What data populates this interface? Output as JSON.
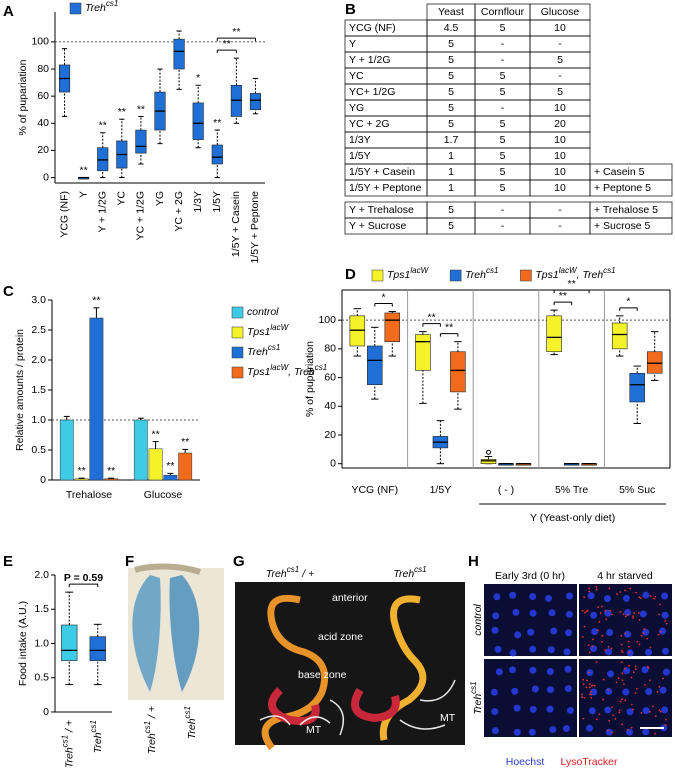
{
  "panels": [
    "A",
    "B",
    "C",
    "D",
    "E",
    "F",
    "G",
    "H"
  ],
  "chart_data": [
    {
      "type": "box",
      "ylabel": "% of pupariation",
      "categories": [
        "YCG (NF)",
        "Y",
        "Y + 1/2G",
        "YC",
        "YC + 1/2G",
        "YG",
        "YC + 2G",
        "1/3Y",
        "1/5Y",
        "1/5Y + Casein",
        "1/5Y + Peptone"
      ],
      "ylim": [
        -4,
        122
      ],
      "yticks": [
        0,
        20,
        40,
        60,
        80,
        100
      ],
      "refline": 100,
      "series": [
        {
          "name": [
            "Treh",
            "cs1"
          ],
          "color": "#1f6fd6",
          "boxes": [
            {
              "min": 45,
              "q1": 63,
              "median": 73,
              "q3": 83,
              "max": 95
            },
            {
              "min": 0,
              "q1": 0,
              "median": 0,
              "q3": 0,
              "max": 0
            },
            {
              "min": 0,
              "q1": 5,
              "median": 13,
              "q3": 22,
              "max": 33
            },
            {
              "min": 0,
              "q1": 7,
              "median": 17,
              "q3": 27,
              "max": 43
            },
            {
              "min": 10,
              "q1": 18,
              "median": 23,
              "q3": 35,
              "max": 45
            },
            {
              "min": 25,
              "q1": 35,
              "median": 49,
              "q3": 63,
              "max": 80
            },
            {
              "min": 65,
              "q1": 80,
              "median": 93,
              "q3": 102,
              "max": 108
            },
            {
              "min": 22,
              "q1": 28,
              "median": 40,
              "q3": 55,
              "max": 68
            },
            {
              "min": 0,
              "q1": 10,
              "median": 15,
              "q3": 24,
              "max": 35
            },
            {
              "min": 40,
              "q1": 45,
              "median": 57,
              "q3": 68,
              "max": 88
            },
            {
              "min": 47,
              "q1": 50,
              "median": 57,
              "q3": 62,
              "max": 73
            }
          ]
        }
      ],
      "sig": [
        null,
        "**",
        "**",
        "**",
        "**",
        null,
        null,
        "*",
        "**",
        null,
        null
      ],
      "brackets": [
        {
          "text": "**",
          "from": 8,
          "to": 9
        },
        {
          "text": "**",
          "from": 8,
          "to": 10
        }
      ]
    },
    {
      "type": "bar",
      "ylabel": "Relative amounts / protein",
      "categories": [
        "Trehalose",
        "Glucose"
      ],
      "ylim": [
        0,
        3
      ],
      "yticks": [
        0,
        0.5,
        {
          "value": 1,
          "label": "1.0"
        },
        {
          "value": 1.5,
          "label": "1.5"
        },
        {
          "value": 2,
          "label": "2.0"
        },
        {
          "value": 2.5,
          "label": "2.5"
        },
        {
          "value": 3,
          "label": "3.0"
        }
      ],
      "refline": 1,
      "series": [
        {
          "name": "control",
          "color": "#3ecbe6",
          "values": [
            1.0,
            1.0
          ],
          "errors": [
            0.06,
            0.03
          ],
          "sig": [
            null,
            null
          ]
        },
        {
          "name": [
            "Tps1",
            "lacW"
          ],
          "color": "#f5f22a",
          "values": [
            0.02,
            0.52
          ],
          "errors": [
            0.01,
            0.12
          ],
          "sig": [
            "**",
            "**"
          ]
        },
        {
          "name": [
            "Treh",
            "cs1"
          ],
          "color": "#1f6fd6",
          "values": [
            2.7,
            0.08
          ],
          "errors": [
            0.17,
            0.03
          ],
          "sig": [
            "**",
            "**"
          ]
        },
        {
          "name": [
            "Tps1",
            "lacW",
            ", Treh",
            "cs1"
          ],
          "color": "#f26b1d",
          "values": [
            0.02,
            0.45
          ],
          "errors": [
            0.01,
            0.06
          ],
          "sig": [
            "**",
            "**"
          ]
        }
      ]
    },
    {
      "type": "box",
      "ylabel": "% of pupariation",
      "categories": [
        "YCG (NF)",
        "1/5Y",
        "( - )",
        "5% Tre",
        "5% Suc"
      ],
      "ylim": [
        -3,
        121
      ],
      "yticks": [
        0,
        20,
        40,
        60,
        80,
        100
      ],
      "refline": 100,
      "group_note": {
        "text": "Y (Yeast-only diet)",
        "from": 2,
        "to": 4
      },
      "series": [
        {
          "name": [
            "Tps1",
            "lacW"
          ],
          "color": "#f5f22a",
          "boxes": [
            {
              "min": 75,
              "q1": 82,
              "median": 93,
              "q3": 103,
              "max": 108
            },
            {
              "min": 42,
              "q1": 65,
              "median": 85,
              "q3": 90,
              "max": 92
            },
            {
              "min": 0,
              "q1": 0,
              "median": 2,
              "q3": 3,
              "max": 5,
              "outliers": [
                8
              ]
            },
            {
              "min": 76,
              "q1": 78,
              "median": 88,
              "q3": 103,
              "max": 107
            },
            {
              "min": 75,
              "q1": 80,
              "median": 90,
              "q3": 98,
              "max": 103
            }
          ]
        },
        {
          "name": [
            "Treh",
            "cs1"
          ],
          "color": "#1f6fd6",
          "boxes": [
            {
              "min": 45,
              "q1": 55,
              "median": 72,
              "q3": 82,
              "max": 95
            },
            {
              "min": 0,
              "q1": 11,
              "median": 15,
              "q3": 19,
              "max": 30
            },
            {
              "min": 0,
              "q1": 0,
              "median": 0,
              "q3": 0,
              "max": 0
            },
            {
              "min": 0,
              "q1": 0,
              "median": 0,
              "q3": 0,
              "max": 0
            },
            {
              "min": 28,
              "q1": 43,
              "median": 55,
              "q3": 63,
              "max": 68
            }
          ]
        },
        {
          "name": [
            "Tps1",
            "lacW",
            ", Treh",
            "cs1"
          ],
          "color": "#f26b1d",
          "boxes": [
            {
              "min": 75,
              "q1": 85,
              "median": 100,
              "q3": 105,
              "max": 106
            },
            {
              "min": 38,
              "q1": 50,
              "median": 65,
              "q3": 78,
              "max": 85
            },
            {
              "min": 0,
              "q1": 0,
              "median": 0,
              "q3": 0,
              "max": 0
            },
            {
              "min": 0,
              "q1": 0,
              "median": 0,
              "q3": 0,
              "max": 0
            },
            {
              "min": 58,
              "q1": 63,
              "median": 70,
              "q3": 78,
              "max": 92
            }
          ]
        }
      ],
      "brackets": [
        {
          "text": "*",
          "category": 0,
          "from": 1,
          "to": 2
        },
        {
          "text": "**",
          "category": 1,
          "from": 0,
          "to": 1
        },
        {
          "text": "**",
          "category": 1,
          "from": 1,
          "to": 2
        },
        {
          "text": "**",
          "category": 3,
          "from": 0,
          "to": 1
        },
        {
          "text": "**",
          "category": 3,
          "from": 0,
          "to": 2
        },
        {
          "text": "*",
          "category": 4,
          "from": 0,
          "to": 1
        }
      ]
    },
    {
      "type": "box",
      "ylabel": "Food intake (A.U.)",
      "categories": [
        [
          "Treh",
          "cs1",
          " / +"
        ],
        [
          "Treh",
          "cs1"
        ]
      ],
      "ylim": [
        0,
        2
      ],
      "yticks": [
        0,
        0.5,
        {
          "value": 1,
          "label": "1.0"
        },
        {
          "value": 1.5,
          "label": "1.5"
        },
        {
          "value": 2,
          "label": "2.0"
        }
      ],
      "series": [
        {
          "colors": [
            "#3ecbe6",
            "#1f6fd6"
          ],
          "boxes": [
            {
              "min": 0.4,
              "q1": 0.75,
              "median": 0.9,
              "q3": 1.27,
              "max": 1.75
            },
            {
              "min": 0.4,
              "q1": 0.75,
              "median": 0.9,
              "q3": 1.1,
              "max": 1.28
            }
          ]
        }
      ],
      "brackets": [
        {
          "text": "P = 0.59",
          "from": 0,
          "to": 1
        }
      ]
    }
  ],
  "table": {
    "header": [
      "Yeast",
      "Cornflour",
      "Glucose"
    ],
    "rows": [
      [
        "YCG (NF)",
        "4.5",
        "5",
        "10"
      ],
      [
        "Y",
        "5",
        "-",
        "-"
      ],
      [
        "Y + 1/2G",
        "5",
        "-",
        "5"
      ],
      [
        "YC",
        "5",
        "5",
        "-"
      ],
      [
        "YC+ 1/2G",
        "5",
        "5",
        "5"
      ],
      [
        "YG",
        "5",
        "-",
        "10"
      ],
      [
        "YC + 2G",
        "5",
        "5",
        "20"
      ],
      [
        "1/3Y",
        "1.7",
        "5",
        "10"
      ],
      [
        "1/5Y",
        "1",
        "5",
        "10"
      ],
      [
        "1/5Y + Casein",
        "1",
        "5",
        "10",
        "+ Casein  5"
      ],
      [
        "1/5Y + Peptone",
        "1",
        "5",
        "10",
        "+ Peptone  5"
      ]
    ],
    "rows2": [
      [
        "Y + Trehalose",
        "5",
        "-",
        "-",
        "+ Trehalose  5"
      ],
      [
        "Y + Sucrose",
        "5",
        "-",
        "-",
        "+ Sucrose  5"
      ]
    ]
  },
  "images": {
    "F": {
      "labels": [
        [
          "Treh",
          "cs1",
          " / +"
        ],
        [
          "Treh",
          "cs1"
        ]
      ]
    },
    "G": {
      "titles": [
        [
          "Treh",
          "cs1",
          " / +"
        ],
        [
          "Treh",
          "cs1"
        ]
      ],
      "notes": [
        "anterior",
        "acid zone",
        "base zone",
        "MT",
        "MT"
      ]
    },
    "H": {
      "columns": [
        "Early 3rd (0 hr)",
        "4 hr starved"
      ],
      "rows": [
        "control",
        [
          "Treh",
          "cs1"
        ]
      ],
      "stains": [
        "Hoechst",
        "LysoTracker"
      ]
    }
  }
}
